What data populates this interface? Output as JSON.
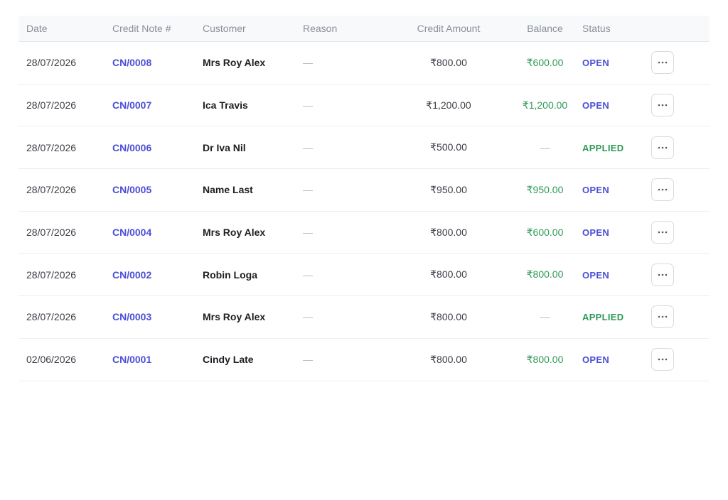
{
  "table": {
    "headers": {
      "date": "Date",
      "credit_note": "Credit Note #",
      "customer": "Customer",
      "reason": "Reason",
      "credit_amount": "Credit Amount",
      "balance": "Balance",
      "status": "Status"
    },
    "rows": [
      {
        "date": "28/07/2026",
        "credit_note": "CN/0008",
        "customer": "Mrs Roy Alex",
        "reason": "—",
        "credit_amount": "₹800.00",
        "balance": "₹600.00",
        "status": "OPEN"
      },
      {
        "date": "28/07/2026",
        "credit_note": "CN/0007",
        "customer": "Ica Travis",
        "reason": "—",
        "credit_amount": "₹1,200.00",
        "balance": "₹1,200.00",
        "status": "OPEN"
      },
      {
        "date": "28/07/2026",
        "credit_note": "CN/0006",
        "customer": "Dr Iva Nil",
        "reason": "—",
        "credit_amount": "₹500.00",
        "balance": "—",
        "status": "APPLIED"
      },
      {
        "date": "28/07/2026",
        "credit_note": "CN/0005",
        "customer": "Name Last",
        "reason": "—",
        "credit_amount": "₹950.00",
        "balance": "₹950.00",
        "status": "OPEN"
      },
      {
        "date": "28/07/2026",
        "credit_note": "CN/0004",
        "customer": "Mrs Roy Alex",
        "reason": "—",
        "credit_amount": "₹800.00",
        "balance": "₹600.00",
        "status": "OPEN"
      },
      {
        "date": "28/07/2026",
        "credit_note": "CN/0002",
        "customer": "Robin Loga",
        "reason": "—",
        "credit_amount": "₹800.00",
        "balance": "₹800.00",
        "status": "OPEN"
      },
      {
        "date": "28/07/2026",
        "credit_note": "CN/0003",
        "customer": "Mrs Roy Alex",
        "reason": "—",
        "credit_amount": "₹800.00",
        "balance": "—",
        "status": "APPLIED"
      },
      {
        "date": "02/06/2026",
        "credit_note": "CN/0001",
        "customer": "Cindy Late",
        "reason": "—",
        "credit_amount": "₹800.00",
        "balance": "₹800.00",
        "status": "OPEN"
      }
    ],
    "row_action_icon": "more-horizontal-icon"
  },
  "colors": {
    "link": "#4b4fd6",
    "positive": "#2e9a55",
    "muted": "#b5b9c0",
    "header_bg": "#f8f9fb"
  }
}
